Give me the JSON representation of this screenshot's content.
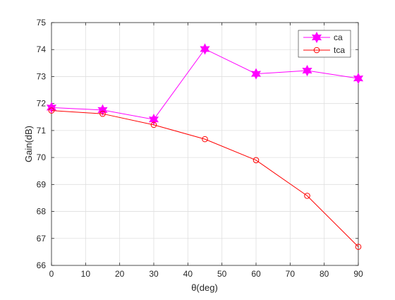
{
  "chart_data": {
    "type": "line",
    "title": "",
    "xlabel": "θ(deg)",
    "ylabel": "Gain(dB)",
    "xlim": [
      0,
      90
    ],
    "ylim": [
      66,
      75
    ],
    "xticks": [
      0,
      10,
      20,
      30,
      40,
      50,
      60,
      70,
      80,
      90
    ],
    "yticks": [
      66,
      67,
      68,
      69,
      70,
      71,
      72,
      73,
      74,
      75
    ],
    "grid": true,
    "legend_position": "top-right",
    "series": [
      {
        "name": "ca",
        "color": "#ff00ff",
        "marker": "hexagram",
        "x": [
          0,
          15,
          30,
          45,
          60,
          75,
          90
        ],
        "y": [
          71.85,
          71.76,
          71.41,
          74.02,
          73.1,
          73.22,
          72.93
        ]
      },
      {
        "name": "tca",
        "color": "#ff0000",
        "marker": "circle",
        "x": [
          0,
          15,
          30,
          45,
          60,
          75,
          90
        ],
        "y": [
          71.74,
          71.62,
          71.21,
          70.68,
          69.9,
          68.58,
          66.69
        ]
      }
    ]
  }
}
